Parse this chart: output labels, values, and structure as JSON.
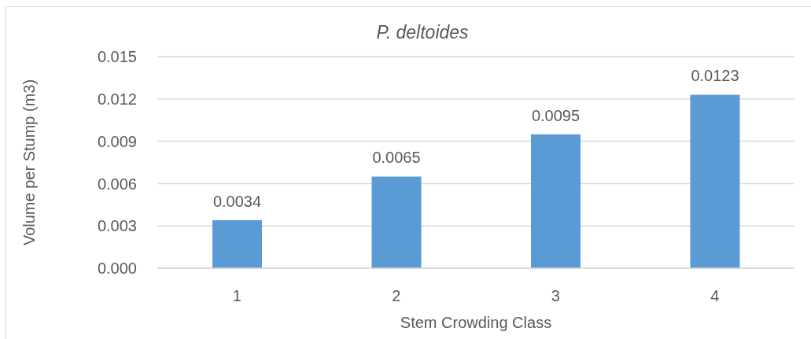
{
  "chart_data": {
    "type": "bar",
    "title": "P. deltoides",
    "xlabel": "Stem Crowding Class",
    "ylabel": "Volume per Stump (m3)",
    "categories": [
      "1",
      "2",
      "3",
      "4"
    ],
    "values": [
      0.0034,
      0.0065,
      0.0095,
      0.0123
    ],
    "color": "#5b9bd5",
    "ylim": [
      0,
      0.015
    ],
    "yticks": [
      {
        "value": 0,
        "label": "0.000"
      },
      0.003,
      0.006,
      0.009,
      0.012,
      0.015
    ],
    "grid": "y",
    "data_labels": true
  }
}
